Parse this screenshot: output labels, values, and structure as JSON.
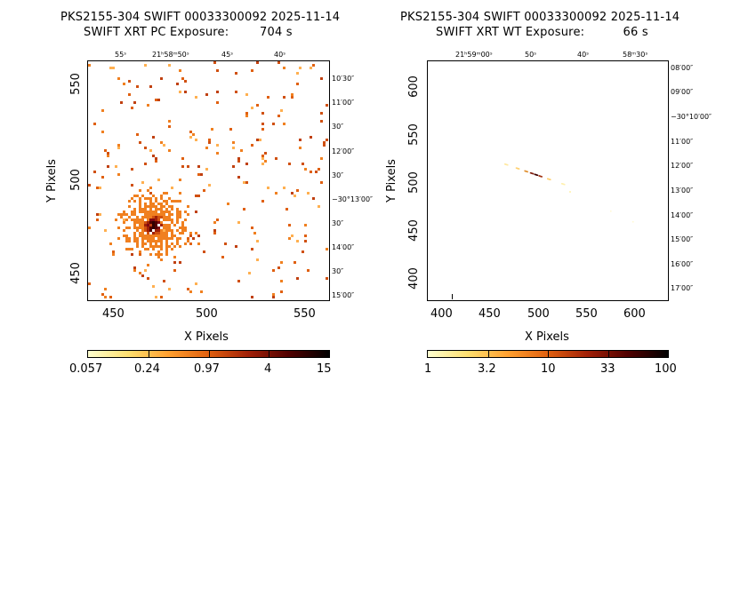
{
  "panels": [
    {
      "id": "pc",
      "title_line1": "PKS2155-304 SWIFT 00033300092 2025-11-14",
      "title_line2": "SWIFT XRT PC Exposure:        704 s",
      "x_label": "X Pixels",
      "y_label": "Y Pixels",
      "x_ticks": [
        "450",
        "500",
        "550"
      ],
      "y_ticks": [
        "450",
        "500",
        "550"
      ],
      "ra_ticks": [
        "55ˢ",
        "21ʰ58ᵐ50ˢ",
        "45ˢ",
        "40ˢ"
      ],
      "dec_ticks": [
        "10′30″",
        "11′00″",
        "30″",
        "12′00″",
        "30″",
        "−30°13′00″",
        "30″",
        "14′00″",
        "30″",
        "15′00″"
      ],
      "colorbar_ticks": [
        "0.057",
        "0.24",
        "0.97",
        "4",
        "15"
      ],
      "colorbar_scale": "log"
    },
    {
      "id": "wt",
      "title_line1": "PKS2155-304 SWIFT 00033300092 2025-11-14",
      "title_line2": "SWIFT XRT WT Exposure:          66 s",
      "x_label": "X Pixels",
      "y_label": "Y Pixels",
      "x_ticks": [
        "400",
        "450",
        "500",
        "550",
        "600"
      ],
      "y_ticks": [
        "400",
        "450",
        "500",
        "550",
        "600"
      ],
      "ra_ticks": [
        "21ʰ59ᵐ00ˢ",
        "50ˢ",
        "40ˢ",
        "58ᵐ30ˢ"
      ],
      "dec_ticks": [
        "08′00″",
        "09′00″",
        "−30°10′00″",
        "11′00″",
        "12′00″",
        "13′00″",
        "14′00″",
        "15′00″",
        "16′00″",
        "17′00″"
      ],
      "colorbar_ticks": [
        "1",
        "3.2",
        "10",
        "33",
        "100"
      ],
      "colorbar_scale": "log"
    }
  ],
  "colors": {
    "colormap": [
      "#ffffd0",
      "#ffe070",
      "#ffa030",
      "#e06010",
      "#a02008",
      "#500000",
      "#000000"
    ]
  }
}
